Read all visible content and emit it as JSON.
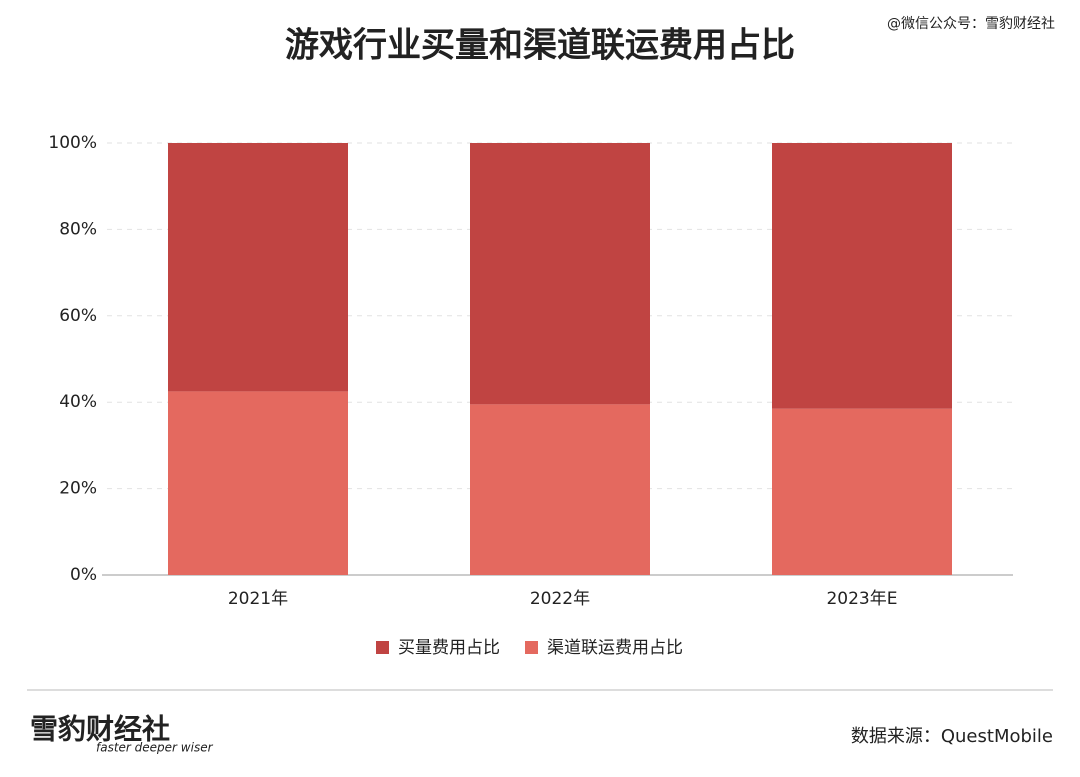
{
  "chart_data": {
    "type": "stacked_bar",
    "title": "游戏行业买量和渠道联运费用占比",
    "categories": [
      "2021年",
      "2022年",
      "2023年E"
    ],
    "series": [
      {
        "name": "买量费用占比",
        "color": "#c04442",
        "values": [
          57.5,
          60.5,
          61.5
        ]
      },
      {
        "name": "渠道联运费用占比",
        "color": "#e4695f",
        "values": [
          42.5,
          39.5,
          38.5
        ]
      }
    ],
    "ylim": [
      0,
      100
    ],
    "yticks": [
      {
        "value": 0,
        "label": "0%"
      },
      {
        "value": 20,
        "label": "20%"
      },
      {
        "value": 40,
        "label": "40%"
      },
      {
        "value": 60,
        "label": "60%"
      },
      {
        "value": 80,
        "label": "80%"
      },
      {
        "value": 100,
        "label": "100%"
      }
    ],
    "grid": true
  },
  "watermark": "@微信公众号：雪豹财经社",
  "logo": {
    "name": "雪豹财经社",
    "slogan": "faster deeper wiser"
  },
  "source": "数据来源：QuestMobile"
}
